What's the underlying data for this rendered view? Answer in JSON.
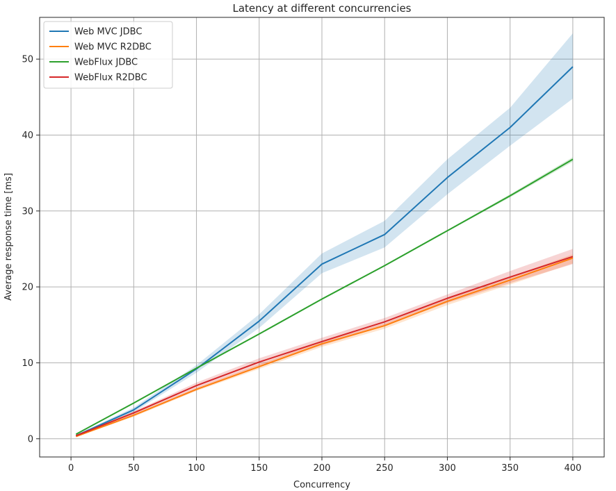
{
  "chart_data": {
    "type": "line",
    "title": "Latency at different concurrencies",
    "xlabel": "Concurrency",
    "ylabel": "Average response time [ms]",
    "xlim": [
      -25,
      425
    ],
    "ylim": [
      -2.4,
      55.5
    ],
    "xticks": [
      0,
      50,
      100,
      150,
      200,
      250,
      300,
      350,
      400
    ],
    "yticks": [
      0,
      10,
      20,
      30,
      40,
      50
    ],
    "grid": true,
    "legend_position": "top-left",
    "x": [
      4,
      50,
      100,
      150,
      200,
      250,
      300,
      350,
      400
    ],
    "series": [
      {
        "name": "Web MVC JDBC",
        "color": "#1f77b4",
        "values": [
          0.4,
          3.8,
          9.2,
          15.5,
          23.0,
          26.9,
          34.4,
          41.0,
          49.0
        ],
        "band_low": [
          0.3,
          3.5,
          8.7,
          14.6,
          21.8,
          25.2,
          32.2,
          38.6,
          44.8
        ],
        "band_high": [
          0.5,
          4.1,
          9.7,
          16.4,
          24.4,
          28.7,
          36.8,
          43.6,
          53.4
        ]
      },
      {
        "name": "Web MVC R2DBC",
        "color": "#ff7f0e",
        "values": [
          0.3,
          3.1,
          6.5,
          9.5,
          12.5,
          14.9,
          18.1,
          20.9,
          23.8
        ],
        "band_low": [
          0.25,
          2.9,
          6.3,
          9.2,
          12.1,
          14.5,
          17.6,
          20.3,
          23.1
        ],
        "band_high": [
          0.35,
          3.3,
          6.7,
          9.8,
          12.8,
          15.2,
          18.5,
          21.3,
          24.3
        ]
      },
      {
        "name": "WebFlux JDBC",
        "color": "#2ca02c",
        "values": [
          0.6,
          4.7,
          9.3,
          13.8,
          18.4,
          22.8,
          27.4,
          32.0,
          36.8
        ],
        "band_low": [
          0.55,
          4.6,
          9.2,
          13.7,
          18.3,
          22.7,
          27.3,
          31.8,
          36.5
        ],
        "band_high": [
          0.65,
          4.8,
          9.4,
          13.9,
          18.5,
          22.9,
          27.5,
          32.2,
          37.1
        ]
      },
      {
        "name": "WebFlux R2DBC",
        "color": "#d62728",
        "values": [
          0.4,
          3.4,
          7.0,
          10.1,
          12.8,
          15.4,
          18.5,
          21.3,
          24.0
        ],
        "band_low": [
          0.3,
          3.2,
          6.6,
          9.6,
          12.3,
          14.9,
          17.9,
          20.5,
          23.0
        ],
        "band_high": [
          0.5,
          3.6,
          7.4,
          10.6,
          13.3,
          15.9,
          19.0,
          22.1,
          25.0
        ]
      }
    ]
  }
}
